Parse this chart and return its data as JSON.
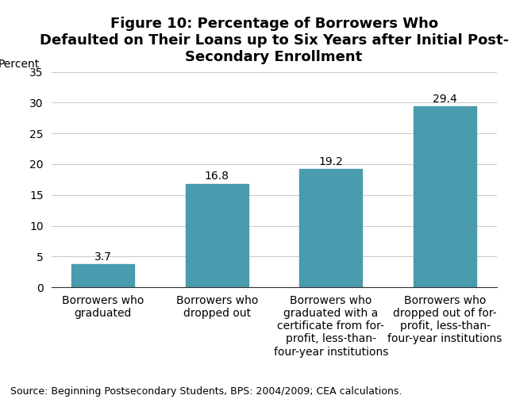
{
  "title": "Figure 10: Percentage of Borrowers Who\nDefaulted on Their Loans up to Six Years after Initial Post-\nSecondary Enrollment",
  "ylabel": "Percent",
  "categories": [
    "Borrowers who\ngraduated",
    "Borrowers who\ndropped out",
    "Borrowers who\ngraduated with a\ncertificate from for-\nprofit, less-than-\nfour-year institutions",
    "Borrowers who\ndropped out of for-\nprofit, less-than-\nfour-year institutions"
  ],
  "values": [
    3.7,
    16.8,
    19.2,
    29.4
  ],
  "bar_color": "#4A9BAD",
  "ylim": [
    0,
    35
  ],
  "yticks": [
    0,
    5,
    10,
    15,
    20,
    25,
    30,
    35
  ],
  "value_labels": [
    "3.7",
    "16.8",
    "19.2",
    "29.4"
  ],
  "source_text": "Source: Beginning Postsecondary Students, BPS: 2004/2009; CEA calculations.",
  "title_fontsize": 13,
  "label_fontsize": 10,
  "tick_fontsize": 10,
  "source_fontsize": 9,
  "bar_width": 0.55,
  "background_color": "#ffffff",
  "grid_color": "#cccccc"
}
